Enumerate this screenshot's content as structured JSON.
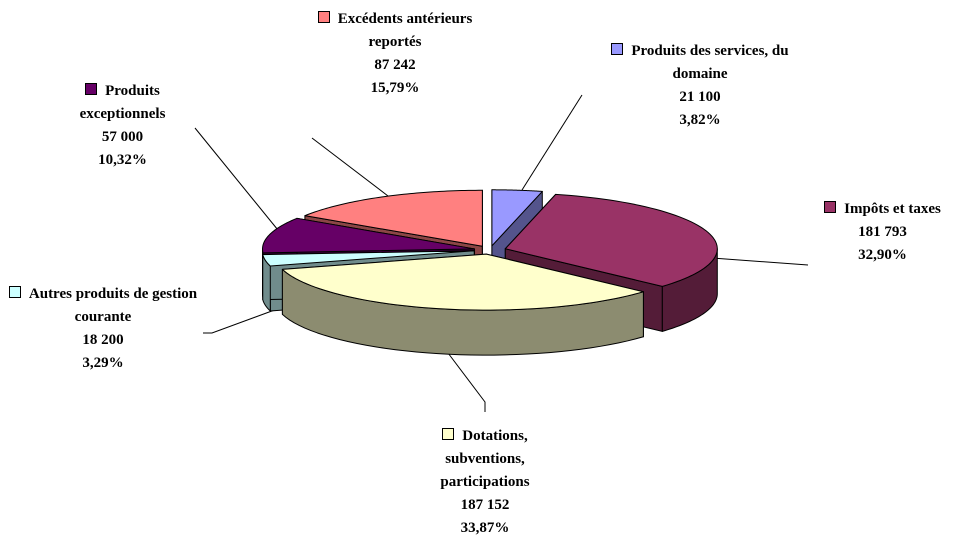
{
  "chart_data": {
    "type": "pie3d",
    "categories": [
      "Produits des services, du domaine",
      "Impôts et taxes",
      "Dotations, subventions, participations",
      "Autres produits de gestion courante",
      "Produits exceptionnels",
      "Excédents antérieurs reportés"
    ],
    "values": [
      21100,
      181793,
      187152,
      18200,
      57000,
      87242
    ],
    "value_labels": [
      "21 100",
      "181 793",
      "187 152",
      "18 200",
      "57 000",
      "87 242"
    ],
    "percents": [
      3.82,
      32.9,
      33.87,
      3.29,
      10.32,
      15.79
    ],
    "percent_labels": [
      "3,82%",
      "32,90%",
      "33,87%",
      "3,29%",
      "10,32%",
      "15,79%"
    ],
    "colors": [
      "#9999ff",
      "#993366",
      "#ffffcc",
      "#ccffff",
      "#660066",
      "#ff8080"
    ]
  }
}
